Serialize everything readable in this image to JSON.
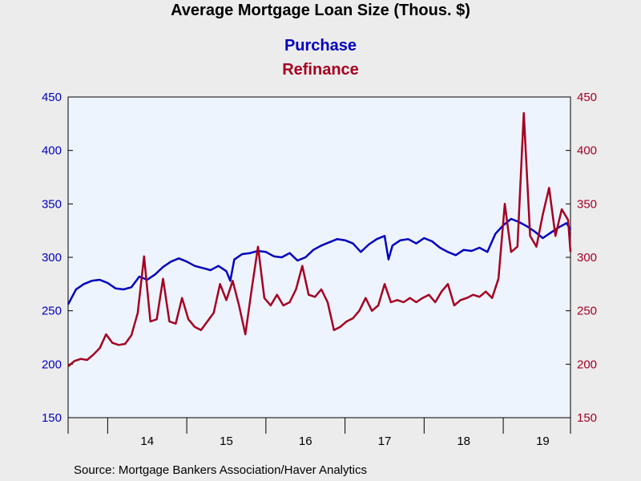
{
  "chart_data": {
    "type": "line",
    "title": "Average Mortgage Loan Size (Thous. $)",
    "source": "Source:  Mortgage Bankers Association/Haver Analytics",
    "x_start": 2013.5,
    "x_end": 2019.85,
    "x_ticks": [
      "14",
      "15",
      "16",
      "17",
      "18",
      "19"
    ],
    "y_left": {
      "min": 150,
      "max": 450,
      "ticks": [
        "150",
        "200",
        "250",
        "300",
        "350",
        "400",
        "450"
      ],
      "color": "#0000c0"
    },
    "y_right": {
      "min": 150,
      "max": 450,
      "ticks": [
        "150",
        "200",
        "250",
        "300",
        "350",
        "400",
        "450"
      ],
      "color": "#a50021"
    },
    "grid": false,
    "series": [
      {
        "name": "Purchase",
        "color": "#0000c0",
        "x": [
          2013.5,
          2013.6,
          2013.7,
          2013.8,
          2013.9,
          2014.0,
          2014.1,
          2014.2,
          2014.3,
          2014.4,
          2014.5,
          2014.6,
          2014.7,
          2014.8,
          2014.9,
          2015.0,
          2015.1,
          2015.2,
          2015.3,
          2015.4,
          2015.5,
          2015.55,
          2015.6,
          2015.7,
          2015.8,
          2015.9,
          2016.0,
          2016.1,
          2016.2,
          2016.3,
          2016.4,
          2016.5,
          2016.6,
          2016.7,
          2016.8,
          2016.9,
          2017.0,
          2017.1,
          2017.2,
          2017.3,
          2017.4,
          2017.5,
          2017.55,
          2017.6,
          2017.7,
          2017.8,
          2017.9,
          2018.0,
          2018.1,
          2018.2,
          2018.3,
          2018.4,
          2018.5,
          2018.6,
          2018.7,
          2018.8,
          2018.9,
          2019.0,
          2019.1,
          2019.2,
          2019.3,
          2019.4,
          2019.5,
          2019.6,
          2019.7,
          2019.8,
          2019.85
        ],
        "values": [
          256,
          270,
          275,
          278,
          279,
          276,
          271,
          270,
          272,
          282,
          279,
          284,
          291,
          296,
          299,
          296,
          292,
          290,
          288,
          292,
          287,
          278,
          298,
          303,
          304,
          306,
          305,
          301,
          300,
          304,
          297,
          300,
          307,
          311,
          314,
          317,
          316,
          313,
          305,
          312,
          317,
          320,
          298,
          311,
          316,
          317,
          313,
          318,
          315,
          309,
          305,
          302,
          307,
          306,
          309,
          305,
          322,
          330,
          336,
          333,
          329,
          324,
          318,
          323,
          328,
          332,
          326
        ]
      },
      {
        "name": "Refinance",
        "color": "#a50021",
        "x": [
          2013.5,
          2013.58,
          2013.66,
          2013.74,
          2013.82,
          2013.9,
          2013.98,
          2014.06,
          2014.14,
          2014.22,
          2014.3,
          2014.38,
          2014.46,
          2014.54,
          2014.62,
          2014.7,
          2014.78,
          2014.86,
          2014.94,
          2015.02,
          2015.1,
          2015.18,
          2015.26,
          2015.34,
          2015.42,
          2015.5,
          2015.58,
          2015.66,
          2015.74,
          2015.82,
          2015.9,
          2015.98,
          2016.06,
          2016.14,
          2016.22,
          2016.3,
          2016.38,
          2016.46,
          2016.54,
          2016.62,
          2016.7,
          2016.78,
          2016.86,
          2016.94,
          2017.02,
          2017.1,
          2017.18,
          2017.26,
          2017.34,
          2017.42,
          2017.5,
          2017.58,
          2017.66,
          2017.74,
          2017.82,
          2017.9,
          2017.98,
          2018.06,
          2018.14,
          2018.22,
          2018.3,
          2018.38,
          2018.46,
          2018.54,
          2018.62,
          2018.7,
          2018.78,
          2018.86,
          2018.94,
          2019.02,
          2019.1,
          2019.18,
          2019.26,
          2019.34,
          2019.42,
          2019.5,
          2019.58,
          2019.66,
          2019.74,
          2019.82,
          2019.85
        ],
        "values": [
          198,
          203,
          205,
          204,
          209,
          215,
          228,
          220,
          218,
          219,
          227,
          248,
          301,
          240,
          242,
          280,
          240,
          238,
          262,
          242,
          235,
          232,
          240,
          248,
          275,
          260,
          278,
          255,
          228,
          270,
          310,
          262,
          255,
          265,
          255,
          258,
          270,
          292,
          265,
          263,
          270,
          258,
          232,
          235,
          240,
          243,
          250,
          262,
          250,
          255,
          275,
          258,
          260,
          258,
          262,
          258,
          262,
          265,
          258,
          268,
          275,
          255,
          260,
          262,
          265,
          263,
          268,
          262,
          280,
          350,
          305,
          310,
          435,
          320,
          310,
          340,
          365,
          320,
          345,
          335,
          305
        ]
      }
    ]
  }
}
